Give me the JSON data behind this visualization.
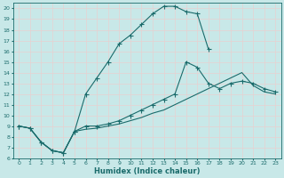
{
  "xlabel": "Humidex (Indice chaleur)",
  "bg_color": "#c8e8e8",
  "grid_color": "#d4eded",
  "line_color": "#1a6b6b",
  "xlim": [
    -0.5,
    23.5
  ],
  "ylim": [
    6,
    20.5
  ],
  "xticks": [
    0,
    1,
    2,
    3,
    4,
    5,
    6,
    7,
    8,
    9,
    10,
    11,
    12,
    13,
    14,
    15,
    16,
    17,
    18,
    19,
    20,
    21,
    22,
    23
  ],
  "yticks": [
    6,
    7,
    8,
    9,
    10,
    11,
    12,
    13,
    14,
    15,
    16,
    17,
    18,
    19,
    20
  ],
  "line1_x": [
    0,
    1,
    2,
    3,
    4,
    5,
    6,
    7,
    8,
    9,
    10,
    11,
    12,
    13,
    14,
    15,
    16,
    17
  ],
  "line1_y": [
    9.0,
    8.8,
    7.5,
    6.7,
    6.5,
    8.5,
    12.0,
    13.5,
    15.0,
    16.7,
    17.5,
    18.5,
    19.5,
    20.2,
    20.2,
    19.7,
    19.5,
    16.2
  ],
  "line2_x": [
    0,
    1,
    2,
    3,
    4,
    5,
    6,
    7,
    8,
    9,
    10,
    11,
    12,
    13,
    14,
    15,
    16,
    17,
    18,
    19,
    20,
    21,
    22,
    23
  ],
  "line2_y": [
    9.0,
    8.8,
    7.5,
    6.7,
    6.5,
    8.5,
    9.0,
    9.0,
    9.2,
    9.5,
    10.0,
    10.5,
    11.0,
    11.5,
    12.0,
    15.0,
    14.5,
    13.0,
    12.5,
    13.0,
    13.2,
    13.0,
    12.5,
    12.2
  ],
  "line3_x": [
    0,
    1,
    2,
    3,
    4,
    5,
    6,
    7,
    8,
    9,
    10,
    11,
    12,
    13,
    14,
    15,
    16,
    17,
    18,
    19,
    20,
    21,
    22,
    23
  ],
  "line3_y": [
    9.0,
    8.8,
    7.5,
    6.7,
    6.5,
    8.5,
    8.7,
    8.8,
    9.0,
    9.2,
    9.5,
    9.8,
    10.2,
    10.5,
    11.0,
    11.5,
    12.0,
    12.5,
    13.0,
    13.5,
    14.0,
    12.8,
    12.2,
    12.0
  ]
}
